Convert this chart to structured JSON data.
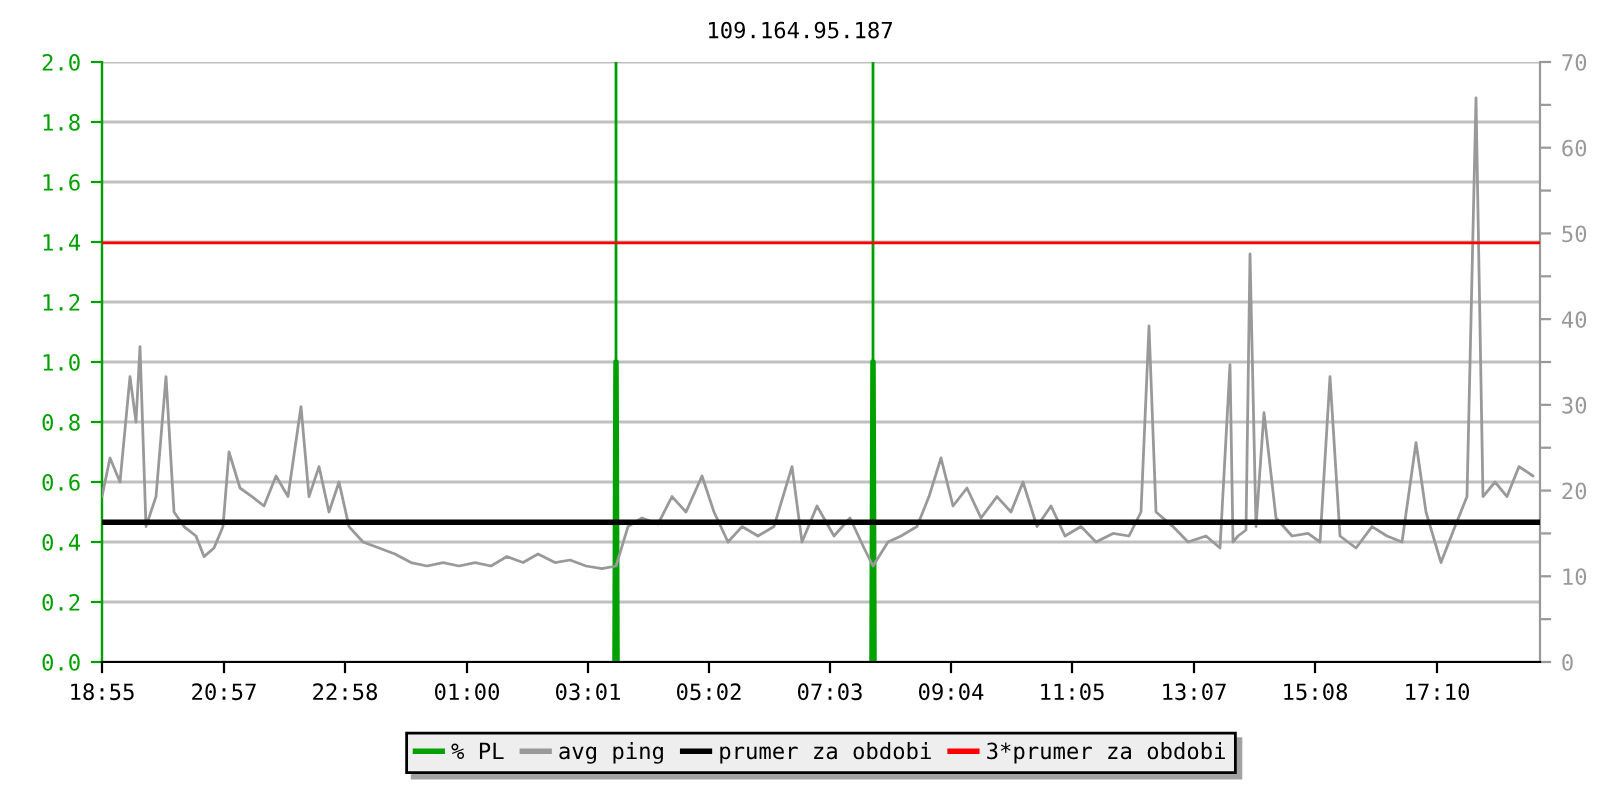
{
  "chart_data": {
    "type": "line",
    "title": "109.164.95.187",
    "xlim": [
      "2000-01-01T18:55",
      "2000-01-02T18:53"
    ],
    "xticks": [
      {
        "value": "2000-01-01T18:55",
        "label": "18:55"
      },
      {
        "value": "2000-01-01T20:57",
        "label": "20:57"
      },
      {
        "value": "2000-01-01T22:58",
        "label": "22:58"
      },
      {
        "value": "2000-01-02T01:00",
        "label": "01:00"
      },
      {
        "value": "2000-01-02T03:01",
        "label": "03:01"
      },
      {
        "value": "2000-01-02T05:02",
        "label": "05:02"
      },
      {
        "value": "2000-01-02T07:03",
        "label": "07:03"
      },
      {
        "value": "2000-01-02T09:04",
        "label": "09:04"
      },
      {
        "value": "2000-01-02T11:05",
        "label": "11:05"
      },
      {
        "value": "2000-01-02T13:07",
        "label": "13:07"
      },
      {
        "value": "2000-01-02T15:08",
        "label": "15:08"
      },
      {
        "value": "2000-01-02T17:10",
        "label": "17:10"
      }
    ],
    "ylim": [
      0,
      2.0
    ],
    "yticks": [
      {
        "value": 0,
        "label": "0.0"
      },
      {
        "value": 0.2,
        "label": "0.2"
      },
      {
        "value": 0.4,
        "label": "0.4"
      },
      {
        "value": 0.6,
        "label": "0.6"
      },
      {
        "value": 0.8,
        "label": "0.8"
      },
      {
        "value": 1.0,
        "label": "1.0"
      },
      {
        "value": 1.2,
        "label": "1.2"
      },
      {
        "value": 1.4,
        "label": "1.4"
      },
      {
        "value": 1.6,
        "label": "1.6"
      },
      {
        "value": 1.8,
        "label": "1.8"
      },
      {
        "value": 2.0,
        "label": "2.0"
      }
    ],
    "y2lim": [
      0,
      70
    ],
    "y2ticks": [
      0,
      {
        "value": 5,
        "label": null
      },
      10,
      {
        "value": 15,
        "label": null
      },
      20,
      {
        "value": 25,
        "label": null
      },
      30,
      {
        "value": 35,
        "label": null
      },
      40,
      {
        "value": 45,
        "label": null
      },
      50,
      {
        "value": 55,
        "label": null
      },
      60,
      {
        "value": 65,
        "label": null
      },
      70
    ],
    "grid": "y",
    "legend": "bottom",
    "series": [
      {
        "name": "% PL",
        "color": "#00a000",
        "axis": "y",
        "x": [
          "2000-01-02T03:28",
          "2000-01-02T03:29",
          "2000-01-02T03:30",
          "2000-01-02T05:00",
          "2000-01-02T07:45",
          "2000-01-02T07:46",
          "2000-01-02T07:47"
        ],
        "values": [
          0,
          1.0,
          0,
          null,
          0,
          1.0,
          0
        ]
      },
      {
        "name": "avg ping",
        "color": "#999999",
        "axis": "y2",
        "x": [
          "2000-01-01T18:55",
          "2000-01-01T19:03",
          "2000-01-01T19:13",
          "2000-01-01T19:23",
          "2000-01-01T19:29",
          "2000-01-01T19:33",
          "2000-01-01T19:39",
          "2000-01-01T19:49",
          "2000-01-01T19:59",
          "2000-01-01T20:07",
          "2000-01-01T20:17",
          "2000-01-01T20:29",
          "2000-01-01T20:37",
          "2000-01-01T20:47",
          "2000-01-01T20:56",
          "2000-01-01T21:02",
          "2000-01-01T21:13",
          "2000-01-01T21:25",
          "2000-01-01T21:37",
          "2000-01-01T21:49",
          "2000-01-01T22:01",
          "2000-01-01T22:14",
          "2000-01-01T22:22",
          "2000-01-01T22:32",
          "2000-01-01T22:42",
          "2000-01-01T22:52",
          "2000-01-01T23:02",
          "2000-01-01T23:16",
          "2000-01-01T23:32",
          "2000-01-01T23:48",
          "2000-01-02T00:04",
          "2000-01-02T00:20",
          "2000-01-02T00:36",
          "2000-01-02T00:52",
          "2000-01-02T01:08",
          "2000-01-02T01:24",
          "2000-01-02T01:40",
          "2000-01-02T01:56",
          "2000-01-02T02:11",
          "2000-01-02T02:28",
          "2000-01-02T02:43",
          "2000-01-02T02:59",
          "2000-01-02T03:15",
          "2000-01-02T03:29",
          "2000-01-02T03:41",
          "2000-01-02T03:55",
          "2000-01-02T04:11",
          "2000-01-02T04:25",
          "2000-01-02T04:39",
          "2000-01-02T04:55",
          "2000-01-02T05:07",
          "2000-01-02T05:21",
          "2000-01-02T05:35",
          "2000-01-02T05:51",
          "2000-01-02T06:07",
          "2000-01-02T06:25",
          "2000-01-02T06:35",
          "2000-01-02T06:50",
          "2000-01-02T07:07",
          "2000-01-02T07:23",
          "2000-01-02T07:37",
          "2000-01-02T07:46",
          "2000-01-02T08:01",
          "2000-01-02T08:14",
          "2000-01-02T08:30",
          "2000-01-02T08:42",
          "2000-01-02T08:54",
          "2000-01-02T09:06",
          "2000-01-02T09:20",
          "2000-01-02T09:34",
          "2000-01-02T09:50",
          "2000-01-02T10:04",
          "2000-01-02T10:16",
          "2000-01-02T10:30",
          "2000-01-02T10:44",
          "2000-01-02T10:58",
          "2000-01-02T11:14",
          "2000-01-02T11:29",
          "2000-01-02T11:46",
          "2000-01-02T12:02",
          "2000-01-02T12:14",
          "2000-01-02T12:22",
          "2000-01-02T12:29",
          "2000-01-02T12:46",
          "2000-01-02T13:01",
          "2000-01-02T13:19",
          "2000-01-02T13:33",
          "2000-01-02T13:43",
          "2000-01-02T13:46",
          "2000-01-02T13:51",
          "2000-01-02T13:59",
          "2000-01-02T14:03",
          "2000-01-02T14:09",
          "2000-01-02T14:17",
          "2000-01-02T14:29",
          "2000-01-02T14:45",
          "2000-01-02T15:01",
          "2000-01-02T15:13",
          "2000-01-02T15:23",
          "2000-01-02T15:33",
          "2000-01-02T15:49",
          "2000-01-02T16:05",
          "2000-01-02T16:20",
          "2000-01-02T16:35",
          "2000-01-02T16:49",
          "2000-01-02T16:59",
          "2000-01-02T17:14",
          "2000-01-02T17:28",
          "2000-01-02T17:40",
          "2000-01-02T17:49",
          "2000-01-02T17:56",
          "2000-01-02T18:08",
          "2000-01-02T18:20",
          "2000-01-02T18:32",
          "2000-01-02T18:46"
        ],
        "values": [
          19.3,
          23.8,
          21,
          33.3,
          28,
          36.8,
          15.8,
          19.3,
          33.3,
          17.5,
          15.8,
          14.7,
          12.3,
          13.3,
          15.8,
          24.5,
          20.3,
          19.3,
          18.2,
          21.7,
          19.3,
          29.8,
          19.3,
          22.8,
          17.5,
          21,
          15.8,
          14,
          13.3,
          12.6,
          11.6,
          11.2,
          11.6,
          11.2,
          11.6,
          11.2,
          12.3,
          11.6,
          12.6,
          11.6,
          11.9,
          11.2,
          10.9,
          11.2,
          15.8,
          16.8,
          16.1,
          19.3,
          17.5,
          21.7,
          17.5,
          14,
          15.8,
          14.7,
          15.8,
          22.8,
          14,
          18.2,
          14.7,
          16.8,
          13.3,
          11.2,
          14,
          14.7,
          15.8,
          19.3,
          23.8,
          18.2,
          20.3,
          16.8,
          19.3,
          17.5,
          21,
          15.8,
          18.2,
          14.7,
          15.8,
          14,
          15,
          14.7,
          17.5,
          39.2,
          17.5,
          15.8,
          14,
          14.7,
          13.3,
          34.7,
          14.0,
          14.7,
          15.4,
          47.6,
          15.8,
          29.1,
          16.8,
          14.7,
          15,
          14,
          33.3,
          14.7,
          13.3,
          15.8,
          14.7,
          14,
          25.6,
          17.5,
          11.6,
          15.8,
          19.3,
          65.8,
          19.3,
          21,
          19.3,
          22.8,
          21.7
        ]
      }
    ],
    "ref_lines": [
      {
        "axis": "y2",
        "value": 16.3,
        "label": "prumer za obdobi",
        "color": "#000000"
      },
      {
        "axis": "y2",
        "value": 48.9,
        "label": "3*prumer za obdobi",
        "color": "#ff0000"
      },
      {
        "axis": "x",
        "value": "2000-01-02T03:29",
        "color": "#00a000"
      },
      {
        "axis": "x",
        "value": "2000-01-02T07:46",
        "color": "#00a000"
      }
    ]
  }
}
